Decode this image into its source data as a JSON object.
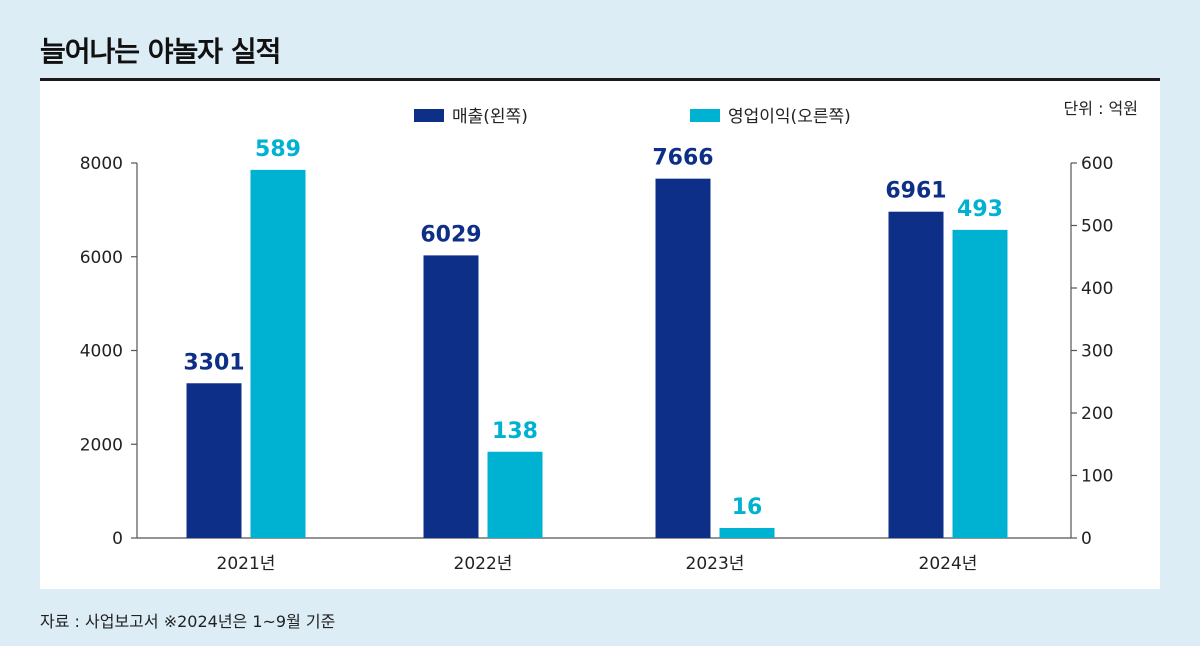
{
  "title": "늘어나는 야놀자 실적",
  "unit_label": "단위 : 억원",
  "source": "자료 : 사업보고서 ※2024년은 1~9월 기준",
  "colors": {
    "sales": "#0e2f87",
    "operating_profit": "#00b2d1",
    "axis": "#555555",
    "text": "#222222"
  },
  "chart_data": {
    "type": "bar",
    "title": "늘어나는 야놀자 실적",
    "categories": [
      "2021년",
      "2022년",
      "2023년",
      "2024년"
    ],
    "series": [
      {
        "name": "매출(왼쪽)",
        "axis": "left",
        "values": [
          3301,
          6029,
          7666,
          6961
        ]
      },
      {
        "name": "영업이익(오른쪽)",
        "axis": "right",
        "values": [
          589,
          138,
          16,
          493
        ]
      }
    ],
    "left_axis": {
      "min": 0,
      "max": 8000,
      "ticks": [
        "0",
        "2000",
        "4000",
        "6000",
        "8000"
      ]
    },
    "right_axis": {
      "min": 0,
      "max": 600,
      "ticks": [
        "0",
        "100",
        "200",
        "300",
        "400",
        "500",
        "600"
      ]
    },
    "legend_position": "top-center",
    "grid": false
  }
}
